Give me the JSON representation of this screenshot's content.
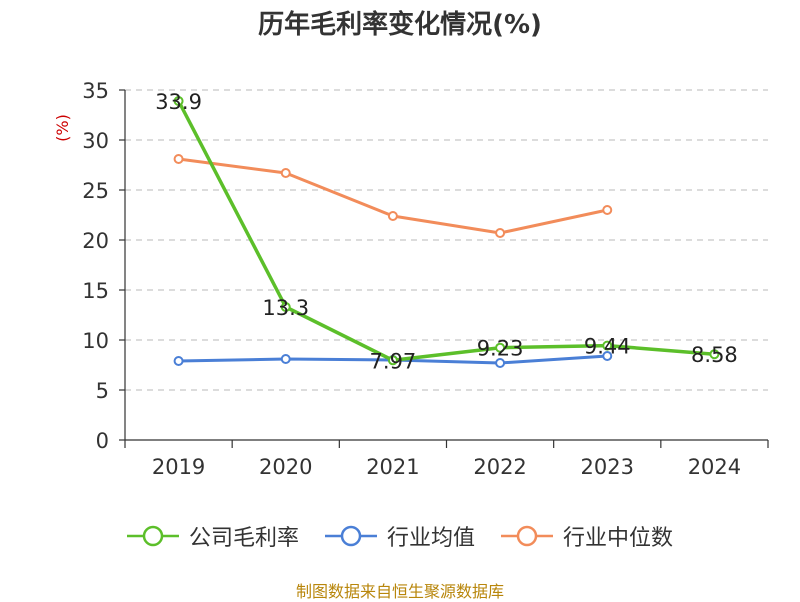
{
  "title": "历年毛利率变化情况(%)",
  "source": "制图数据来自恒生聚源数据库",
  "colors": {
    "company": "#5cbf2a",
    "industry_avg": "#4a7fd6",
    "industry_median": "#f28c5a",
    "grid": "#c8c8c8",
    "axis": "#333333",
    "ylabel": "#cc0000"
  },
  "chart_data": {
    "type": "line",
    "title": "历年毛利率变化情况(%)",
    "xlabel": "",
    "ylabel": "(%)",
    "categories": [
      "2019",
      "2020",
      "2021",
      "2022",
      "2023",
      "2024"
    ],
    "ylim": [
      0,
      35
    ],
    "yticks": [
      0,
      5,
      10,
      15,
      20,
      25,
      30,
      35
    ],
    "grid": true,
    "legend_position": "bottom",
    "series": [
      {
        "name": "公司毛利率",
        "key": "company",
        "values": [
          33.9,
          13.3,
          7.97,
          9.23,
          9.44,
          8.58
        ],
        "labels": [
          "33.9",
          "13.3",
          "7.97",
          "9.23",
          "9.44",
          "8.58"
        ],
        "show_labels": true
      },
      {
        "name": "行业均值",
        "key": "industry_avg",
        "values": [
          7.9,
          8.1,
          8.0,
          7.7,
          8.4,
          null
        ],
        "show_labels": false
      },
      {
        "name": "行业中位数",
        "key": "industry_median",
        "values": [
          28.1,
          26.7,
          22.4,
          20.7,
          23.0,
          null
        ],
        "show_labels": false
      }
    ]
  }
}
